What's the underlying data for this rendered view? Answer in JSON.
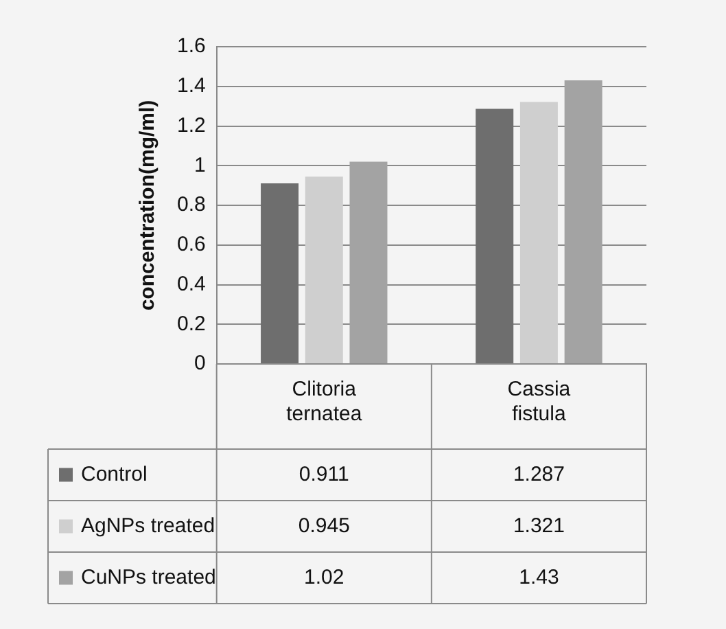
{
  "chart_data": {
    "type": "bar",
    "ylabel": "concentration(mg/ml)",
    "categories": [
      "Clitoria ternatea",
      "Cassia fistula"
    ],
    "series": [
      {
        "name": "Control",
        "color": "#6e6e6e",
        "values": [
          0.911,
          1.287
        ]
      },
      {
        "name": "AgNPs treated",
        "color": "#cfcfcf",
        "values": [
          0.945,
          1.321
        ]
      },
      {
        "name": "CuNPs treated",
        "color": "#a3a3a3",
        "values": [
          1.02,
          1.43
        ]
      }
    ],
    "ylim": [
      0,
      1.6
    ],
    "yticks": [
      0,
      0.2,
      0.4,
      0.6,
      0.8,
      1,
      1.2,
      1.4,
      1.6
    ],
    "grid": "y",
    "legend": "bottom",
    "data_labels": true
  }
}
